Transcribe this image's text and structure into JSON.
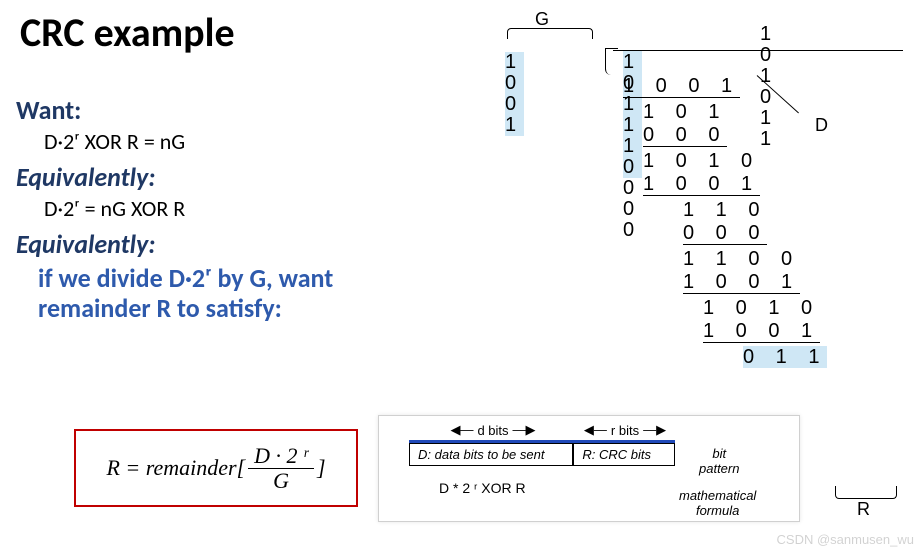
{
  "title": "CRC example",
  "colors": {
    "heading_navy": "#1f3864",
    "conclusion_blue": "#2e5aac",
    "formula_border": "#c00000",
    "highlight_bg": "#cfe7f5",
    "bitpattern_top_rule": "#1f49b8",
    "text": "#000000",
    "background": "#ffffff"
  },
  "fonts": {
    "title_size_pt": 40,
    "heading_size_pt": 26,
    "body_size_pt": 22,
    "division_size_pt": 20
  },
  "left": {
    "want_hdr": "Want:",
    "want_body": "D·2ʳ XOR R = nG",
    "equiv1_hdr": "Equivalently:",
    "equiv1_body": "D·2ʳ = nG XOR R",
    "equiv2_hdr": "Equivalently:",
    "conclusion_l1": "if we divide D·2ʳ by G, want",
    "conclusion_l2": "remainder R to satisfy:"
  },
  "formula": {
    "lhs": "R = remainder[",
    "num": "D · 2 ʳ",
    "den": "G",
    "rhs": "]"
  },
  "bitpattern": {
    "d_bits_label": "d bits",
    "r_bits_label": "r bits",
    "cell_D": "D: data bits to be sent",
    "cell_R": "R: CRC bits",
    "side1": "bit\npattern",
    "mathline": "D * 2 ʳ    XOR   R",
    "side2": "mathematical\nformula"
  },
  "division": {
    "g_label": "G",
    "quotient": "1 0 1 0 1 1",
    "divisor": "1 0 0 1",
    "dividend_hl": "1 0 1 1 1 0",
    "dividend_pad": "0 0 0",
    "d_label": "D",
    "r_label": "R",
    "steps": [
      {
        "indent": 0,
        "text": "1 0 0 1",
        "underline": true
      },
      {
        "indent": 1,
        "text": "1 0 1",
        "underline": false
      },
      {
        "indent": 1,
        "text": "0 0 0",
        "underline": true
      },
      {
        "indent": 1,
        "text": "1 0 1 0",
        "underline": false
      },
      {
        "indent": 1,
        "text": "1 0 0 1",
        "underline": true
      },
      {
        "indent": 3,
        "text": "1 1 0",
        "underline": false
      },
      {
        "indent": 3,
        "text": "0 0 0",
        "underline": true
      },
      {
        "indent": 3,
        "text": "1 1 0 0",
        "underline": false
      },
      {
        "indent": 3,
        "text": "1 0 0 1",
        "underline": true
      },
      {
        "indent": 4,
        "text": "1 0 1 0",
        "underline": false
      },
      {
        "indent": 4,
        "text": "1 0 0 1",
        "underline": true
      }
    ],
    "remainder": {
      "indent": 6,
      "text": "0 1 1"
    }
  },
  "watermark": "CSDN @sanmusen_wu"
}
